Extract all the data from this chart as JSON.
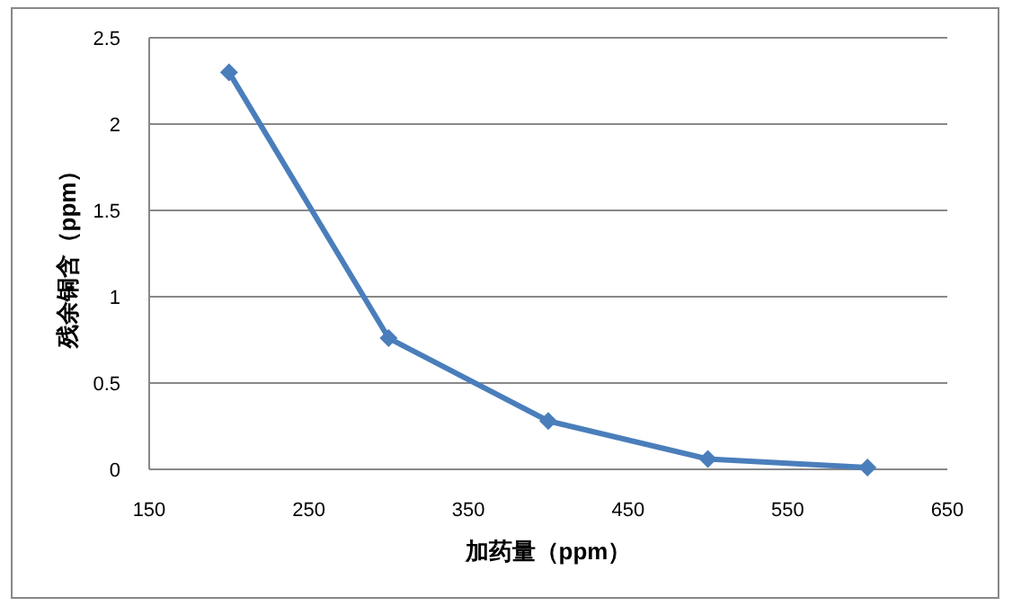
{
  "chart_data": {
    "type": "line",
    "xlabel": "加药量（ppm）",
    "ylabel": "残余铜含（ppm）",
    "x": [
      200,
      300,
      400,
      500,
      600
    ],
    "series": [
      {
        "color": "#4a7ebb",
        "values": [
          2.3,
          0.76,
          0.28,
          0.06,
          0.01
        ]
      }
    ],
    "xlim": [
      150,
      650
    ],
    "xticks": [
      150,
      250,
      350,
      450,
      550,
      650
    ],
    "ylim": [
      0,
      2.5
    ],
    "yticks": [
      0,
      0.5,
      1,
      1.5,
      2,
      2.5
    ],
    "grid": "y",
    "marker": "diamond"
  }
}
